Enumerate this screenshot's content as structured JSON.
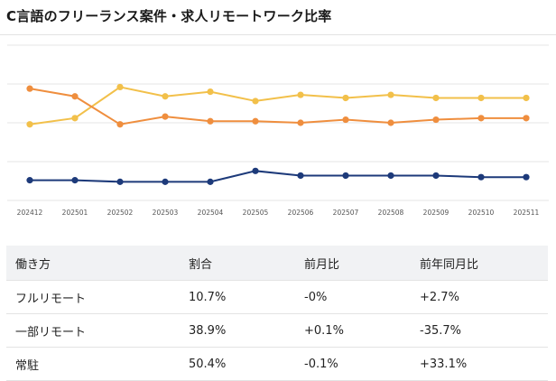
{
  "title": "C言語のフリーランス案件・求人リモートワーク比率",
  "chart_data": {
    "type": "line",
    "x": [
      "202412",
      "202501",
      "202502",
      "202503",
      "202504",
      "202505",
      "202506",
      "202507",
      "202508",
      "202509",
      "202510",
      "202511"
    ],
    "ylim": [
      0,
      100
    ],
    "grid": true,
    "series": [
      {
        "color": "#f2c04a",
        "values": [
          49,
          53,
          73,
          67,
          70,
          64,
          68,
          66,
          68,
          66,
          66,
          66
        ]
      },
      {
        "color": "#ef8e3e",
        "values": [
          72,
          67,
          49,
          54,
          51,
          51,
          50,
          52,
          50,
          52,
          53,
          53
        ]
      },
      {
        "color": "#1d3a7a",
        "values": [
          13,
          13,
          12,
          12,
          12,
          19,
          16,
          16,
          16,
          16,
          15,
          15
        ]
      }
    ]
  },
  "table": {
    "headers": [
      "働き方",
      "割合",
      "前月比",
      "前年同月比"
    ],
    "rows": [
      [
        "フルリモート",
        "10.7%",
        "-0%",
        "+2.7%"
      ],
      [
        "一部リモート",
        "38.9%",
        "+0.1%",
        "-35.7%"
      ],
      [
        "常駐",
        "50.4%",
        "-0.1%",
        "+33.1%"
      ]
    ]
  }
}
